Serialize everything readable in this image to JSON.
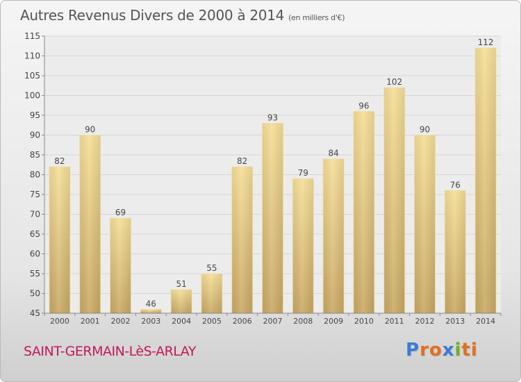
{
  "chart_data": {
    "type": "bar",
    "title": "Autres Revenus Divers de 2000 à 2014",
    "subtitle": "(en milliers d'€)",
    "categories": [
      "2000",
      "2001",
      "2002",
      "2003",
      "2004",
      "2005",
      "2006",
      "2007",
      "2008",
      "2009",
      "2010",
      "2011",
      "2012",
      "2013",
      "2014"
    ],
    "values": [
      82,
      90,
      69,
      46,
      51,
      55,
      82,
      93,
      79,
      84,
      96,
      102,
      90,
      76,
      112
    ],
    "ylim": [
      45,
      115
    ],
    "yticks": [
      45,
      50,
      55,
      60,
      65,
      70,
      75,
      80,
      85,
      90,
      95,
      100,
      105,
      110,
      115
    ],
    "grid": true,
    "bar_color": "#e2c57f"
  },
  "location": "SAINT-GERMAIN-LèS-ARLAY",
  "logo": {
    "text": "Proxiti",
    "letter_colors": [
      "#3b7bd4",
      "#e36f1e",
      "#e36f1e",
      "#3b7bd4",
      "#6ab023",
      "#e36f1e",
      "#e36f1e"
    ]
  }
}
